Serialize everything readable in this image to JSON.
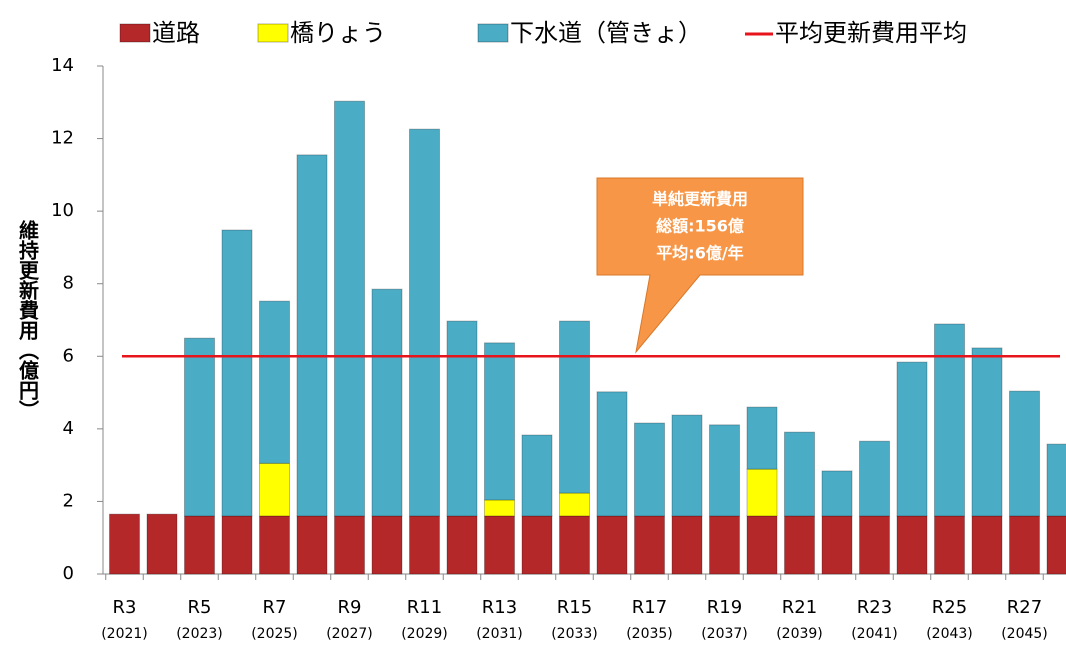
{
  "chart_data": {
    "type": "stacked_bar",
    "y_label": "維持更新費用（億円）",
    "categories": [
      "R3",
      null,
      "R5",
      null,
      "R7",
      null,
      "R9",
      null,
      "R11",
      null,
      "R13",
      null,
      "R15",
      null,
      "R17",
      null,
      "R19",
      null,
      "R21",
      null,
      "R23",
      null,
      "R25",
      null,
      "R27",
      null
    ],
    "category_years": [
      "(2021)",
      null,
      "(2023)",
      null,
      "(2025)",
      null,
      "(2027)",
      null,
      "(2029)",
      null,
      "(2031)",
      null,
      "(2033)",
      null,
      "(2035)",
      null,
      "(2037)",
      null,
      "(2039)",
      null,
      "(2041)",
      null,
      "(2043)",
      null,
      "(2045)",
      null
    ],
    "series": [
      {
        "name": "道路",
        "color": "#b5282a",
        "values": [
          1.65,
          1.65,
          1.6,
          1.6,
          1.6,
          1.6,
          1.6,
          1.6,
          1.6,
          1.6,
          1.6,
          1.6,
          1.6,
          1.6,
          1.6,
          1.6,
          1.6,
          1.6,
          1.6,
          1.6,
          1.6,
          1.6,
          1.6,
          1.6,
          1.6,
          1.6
        ]
      },
      {
        "name": "橋りょう",
        "color": "#ffff00",
        "values": [
          0,
          0,
          0,
          0,
          1.45,
          0,
          0,
          0,
          0,
          0,
          0.44,
          0,
          0.63,
          0,
          0,
          0,
          0,
          1.29,
          0,
          0,
          0,
          0,
          0,
          0,
          0,
          0
        ]
      },
      {
        "name": "下水道（管きょ）",
        "color": "#4bacc6",
        "values": [
          0,
          0,
          4.9,
          7.88,
          4.47,
          9.95,
          11.43,
          6.25,
          10.66,
          5.37,
          4.33,
          2.23,
          4.74,
          3.42,
          2.56,
          2.78,
          2.51,
          1.71,
          2.31,
          1.24,
          2.06,
          4.24,
          5.29,
          4.63,
          3.44,
          1.98
        ]
      }
    ],
    "average_line": {
      "name": "平均更新費用平均",
      "value": 6,
      "color": "#e8141c"
    },
    "annotation": {
      "lines": [
        "単純更新費用",
        "総額:156億",
        "平均:6億/年"
      ],
      "color": "#f79646"
    },
    "ylim": [
      0,
      14
    ],
    "yticks": [
      0,
      2,
      4,
      6,
      8,
      10,
      12,
      14
    ]
  }
}
